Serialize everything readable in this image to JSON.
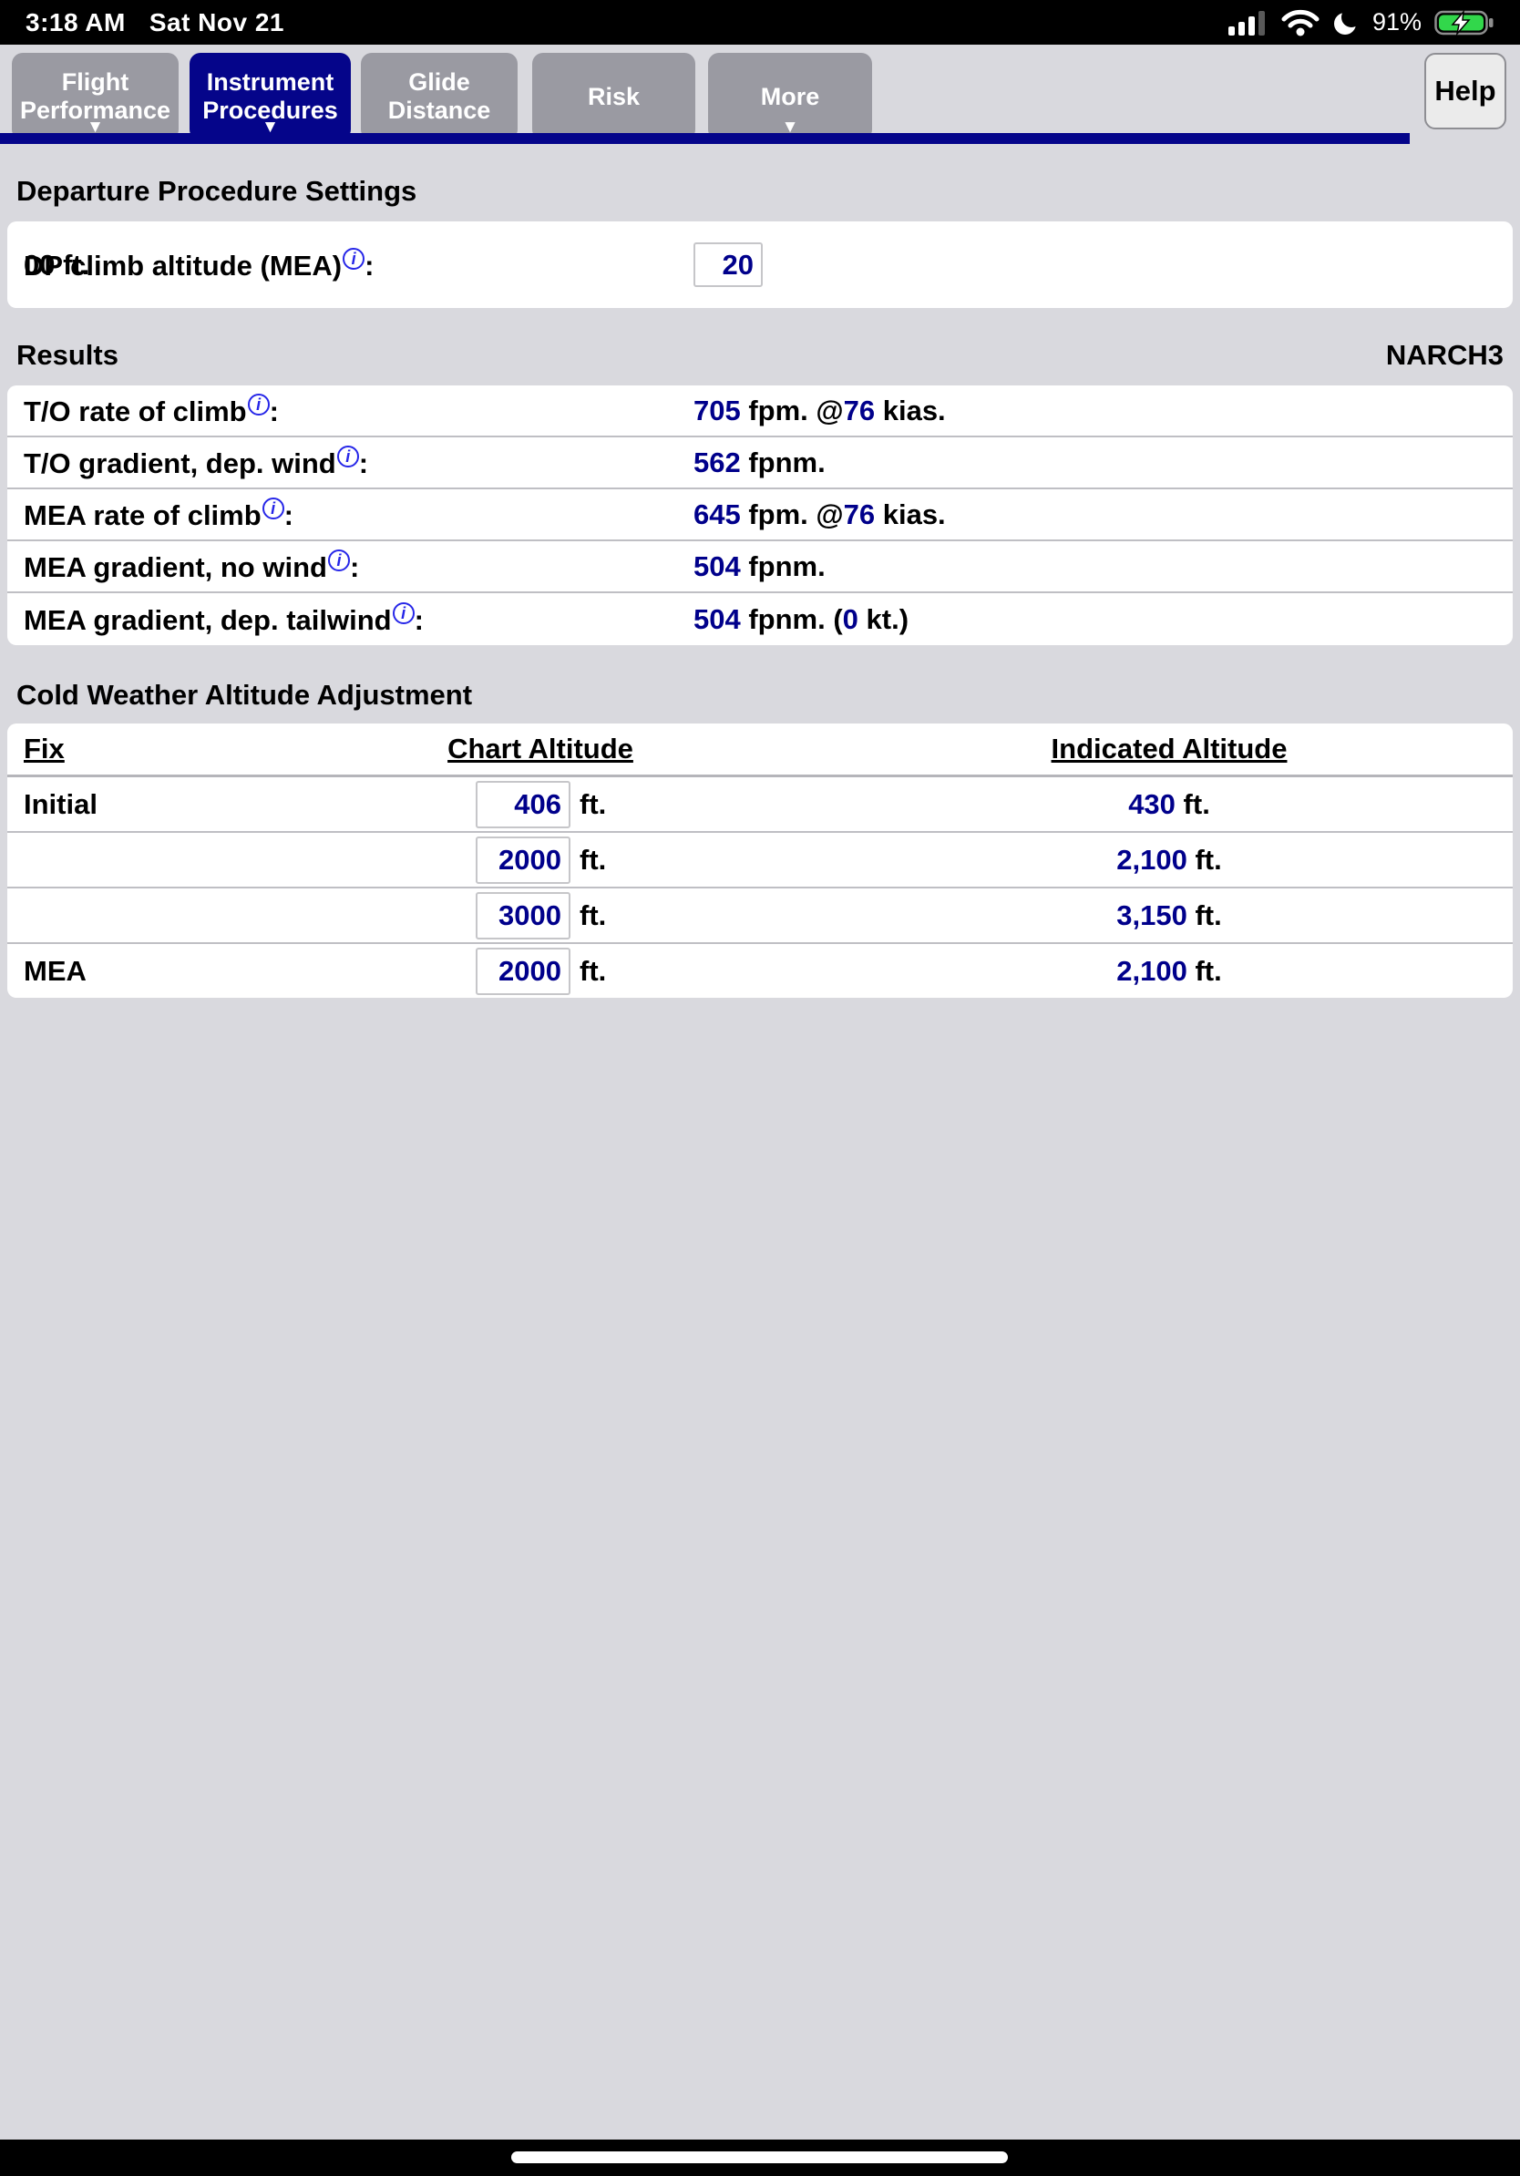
{
  "status_bar": {
    "time": "3:18 AM",
    "date": "Sat Nov 21",
    "battery_percent": "91%",
    "icons": [
      "cellular-signal",
      "wifi",
      "do-not-disturb-moon",
      "battery-charging"
    ]
  },
  "nav": {
    "tabs": [
      {
        "label": "Flight Performance",
        "lines": [
          "Flight",
          "Performance"
        ],
        "caret": true,
        "active": false
      },
      {
        "label": "Instrument Procedures",
        "lines": [
          "Instrument",
          "Procedures"
        ],
        "caret": true,
        "active": true
      },
      {
        "label": "Glide Distance",
        "lines": [
          "Glide",
          "Distance"
        ],
        "caret": false,
        "active": false
      },
      {
        "label": "Risk",
        "lines": [
          "Risk"
        ],
        "caret": false,
        "active": false
      },
      {
        "label": "More",
        "lines": [
          "More"
        ],
        "caret": true,
        "active": false
      }
    ],
    "caret_glyph": "▼",
    "help_label": "Help"
  },
  "info_icon_glyph": "i",
  "punctuation": {
    "colon": ":"
  },
  "departure": {
    "title": "Departure Procedure Settings",
    "row": {
      "label": "DP climb altitude (MEA)",
      "value": "20",
      "suffix": "00 ft."
    }
  },
  "results": {
    "title": "Results",
    "procedure": "NARCH3",
    "rows": [
      {
        "label": "T/O rate of climb",
        "parts": [
          {
            "t": "705",
            "c": "v"
          },
          {
            "t": " fpm. @",
            "c": "p"
          },
          {
            "t": "76",
            "c": "v"
          },
          {
            "t": " kias.",
            "c": "p"
          }
        ]
      },
      {
        "label": "T/O gradient, dep. wind",
        "parts": [
          {
            "t": "562",
            "c": "v"
          },
          {
            "t": " fpnm.",
            "c": "p"
          }
        ]
      },
      {
        "label": "MEA rate of climb",
        "parts": [
          {
            "t": "645",
            "c": "v"
          },
          {
            "t": " fpm. @",
            "c": "p"
          },
          {
            "t": "76",
            "c": "v"
          },
          {
            "t": " kias.",
            "c": "p"
          }
        ]
      },
      {
        "label": "MEA gradient, no wind",
        "parts": [
          {
            "t": "504",
            "c": "v"
          },
          {
            "t": " fpnm.",
            "c": "p"
          }
        ]
      },
      {
        "label": "MEA gradient, dep. tailwind",
        "parts": [
          {
            "t": "504",
            "c": "v"
          },
          {
            "t": " fpnm. (",
            "c": "p"
          },
          {
            "t": "0",
            "c": "v"
          },
          {
            "t": " kt.)",
            "c": "p"
          }
        ]
      }
    ]
  },
  "cold_weather": {
    "title": "Cold Weather Altitude Adjustment",
    "headers": {
      "fix": "Fix",
      "chart": "Chart Altitude",
      "indicated": "Indicated Altitude"
    },
    "unit": "ft.",
    "rows": [
      {
        "fix": "Initial",
        "chart_value": "406",
        "indicated_value": "430",
        "indicated_unit": " ft."
      },
      {
        "fix": "",
        "chart_value": "2000",
        "indicated_value": "2,100",
        "indicated_unit": " ft."
      },
      {
        "fix": "",
        "chart_value": "3000",
        "indicated_value": "3,150",
        "indicated_unit": " ft."
      },
      {
        "fix": "MEA",
        "chart_value": "2000",
        "indicated_value": "2,100",
        "indicated_unit": " ft."
      }
    ]
  },
  "colors": {
    "accent_navy": "#05058a",
    "value_navy": "#00008b",
    "info_blue": "#2626e8",
    "tab_gray": "#9a9aa2",
    "background": "#d9d9de",
    "battery_green": "#32d74b"
  }
}
